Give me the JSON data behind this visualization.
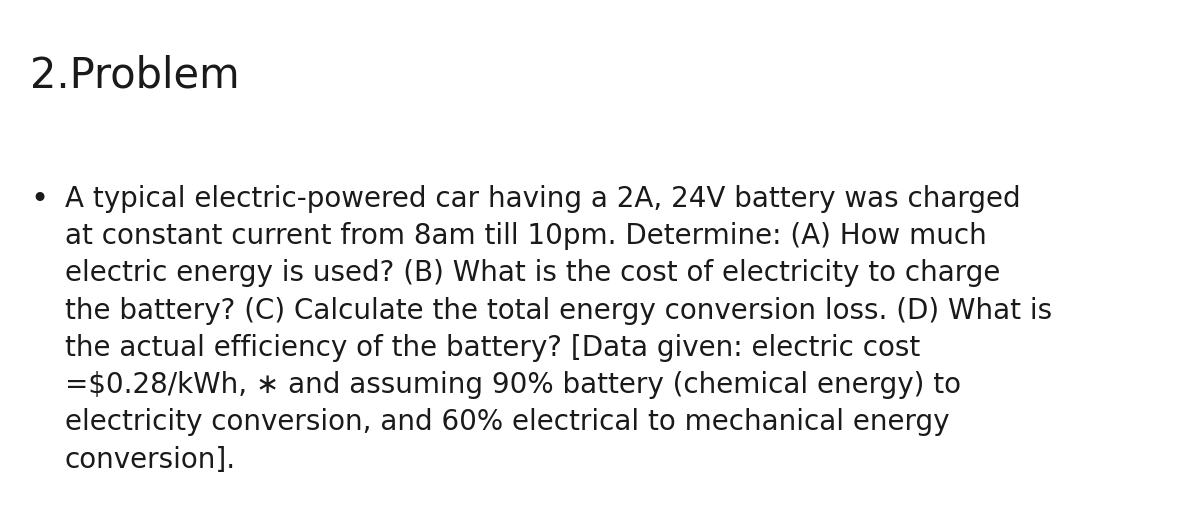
{
  "title": "2.Problem",
  "title_fontsize": 30,
  "background_color": "#ffffff",
  "text_color": "#1a1a1a",
  "bullet_char": "•",
  "bullet_fontsize": 22,
  "body_text": "A typical electric-powered car having a 2A, 24V battery was charged\nat constant current from 8am till 10pm. Determine: (A) How much\nelectric energy is used? (B) What is the cost of electricity to charge\nthe battery? (C) Calculate the total energy conversion loss. (D) What is\nthe actual efficiency of the battery? [Data given: electric cost\n=$0.28/kWh, ∗ and assuming 90% battery (chemical energy) to\nelectricity conversion, and 60% electrical to mechanical energy\nconversion].",
  "body_fontsize": 20,
  "font_family": "DejaVu Sans",
  "fig_width": 11.85,
  "fig_height": 5.27,
  "dpi": 100
}
